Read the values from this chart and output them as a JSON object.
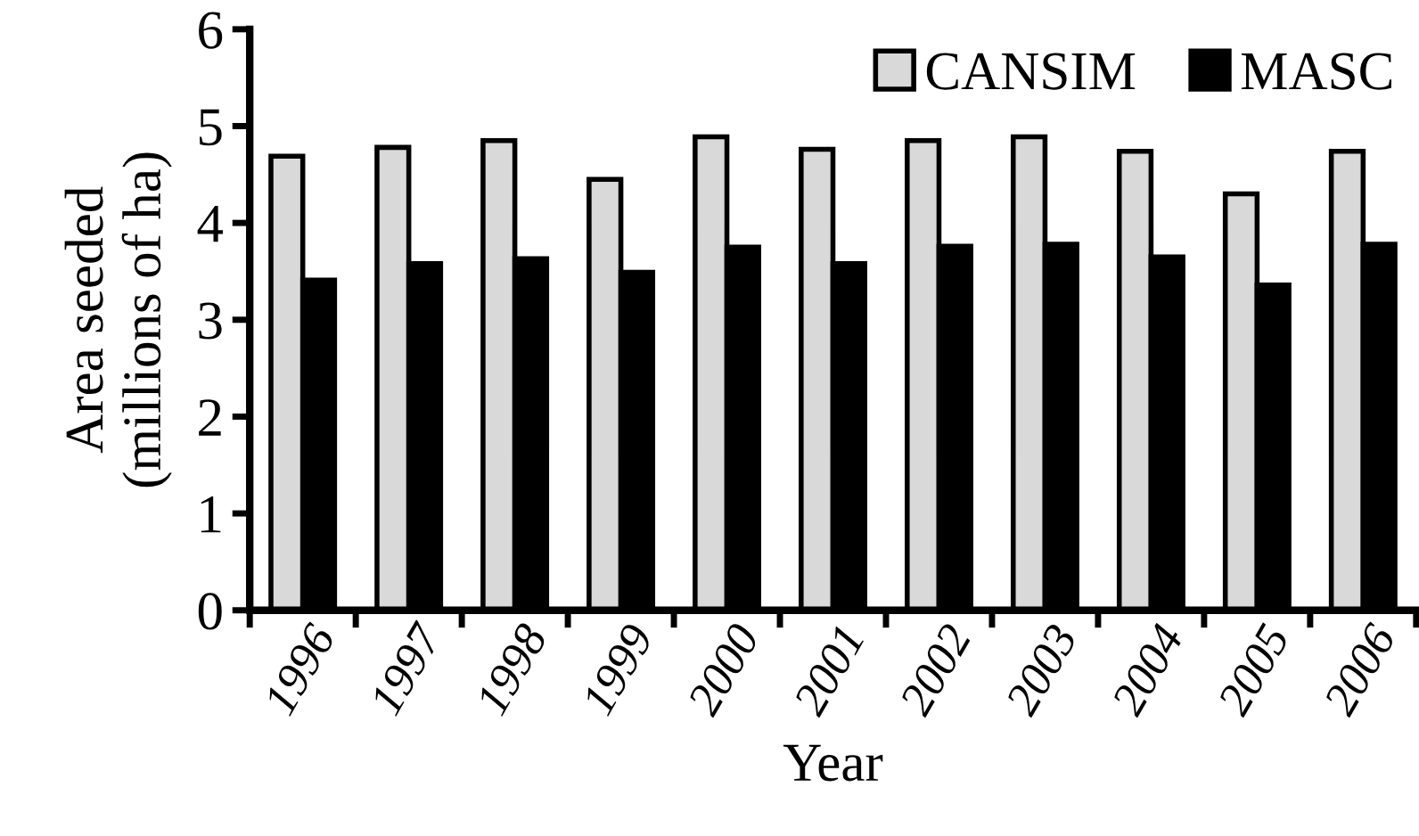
{
  "chart_data": {
    "type": "bar",
    "xlabel": "Year",
    "ylabel": "Area seeded\n(millions of ha)",
    "categories": [
      "1996",
      "1997",
      "1998",
      "1999",
      "2000",
      "2001",
      "2002",
      "2003",
      "2004",
      "2005",
      "2006"
    ],
    "series": [
      {
        "name": "CANSIM",
        "color": "#d9d9d9",
        "values": [
          4.69,
          4.78,
          4.85,
          4.45,
          4.89,
          4.76,
          4.85,
          4.89,
          4.74,
          4.3,
          4.74
        ]
      },
      {
        "name": "MASC",
        "color": "#000000",
        "values": [
          3.41,
          3.58,
          3.63,
          3.49,
          3.75,
          3.58,
          3.76,
          3.78,
          3.65,
          3.36,
          3.78
        ]
      }
    ],
    "ylim": [
      0,
      6
    ],
    "yticks": [
      0,
      1,
      2,
      3,
      4,
      5,
      6
    ],
    "grid": false,
    "legend": "top right"
  }
}
